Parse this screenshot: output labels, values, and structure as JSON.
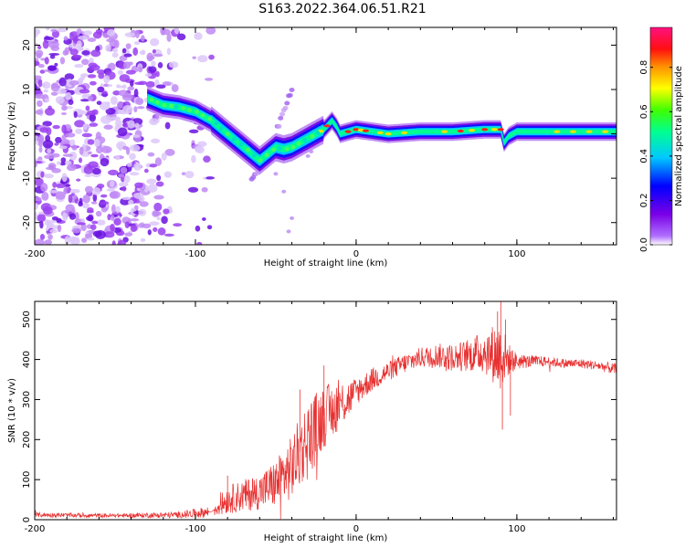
{
  "title": "S163.2022.364.06.51.R21",
  "chart_data": [
    {
      "type": "heatmap",
      "xlabel": "Height of straight line (km)",
      "ylabel": "Frequency (Hz)",
      "xlim": [
        -200,
        162
      ],
      "ylim": [
        -25,
        24
      ],
      "xticks": [
        -200,
        -100,
        0,
        100
      ],
      "yticks": [
        -20,
        -10,
        0,
        10,
        20
      ],
      "colorbar": {
        "label": "Normalized spectral amplitude",
        "range": [
          0,
          0.98
        ],
        "ticks": [
          "0.0",
          "0.2",
          "0.4",
          "0.6",
          "0.8"
        ],
        "colormap": "rainbow (purple-blue-cyan-green-yellow-orange-red-pink)"
      },
      "trace": {
        "x": [
          -130,
          -120,
          -110,
          -100,
          -90,
          -80,
          -70,
          -60,
          -50,
          -45,
          -40,
          -35,
          -30,
          -25,
          -20,
          -15,
          -12,
          -10,
          -5,
          0,
          10,
          20,
          40,
          60,
          80,
          90,
          92,
          95,
          100,
          120,
          140,
          162
        ],
        "freq": [
          8,
          6.5,
          6,
          5,
          3,
          0,
          -3,
          -6,
          -3,
          -3.5,
          -3,
          -2,
          -1,
          0,
          1,
          3,
          1.5,
          0,
          0.5,
          1,
          0.5,
          0,
          0.5,
          0.5,
          1,
          1,
          -2,
          -0.5,
          0.5,
          0.5,
          0.5,
          0.5
        ]
      },
      "secondary_trace": {
        "x": [
          -65,
          -55,
          -50,
          -45,
          -40
        ],
        "freq": [
          -10,
          -5,
          0,
          5,
          10
        ]
      }
    },
    {
      "type": "line",
      "xlabel": "Height of straight line (km)",
      "ylabel": "SNR (10 * v/v)",
      "xlim": [
        -200,
        162
      ],
      "ylim": [
        0,
        545
      ],
      "xticks": [
        -200,
        -100,
        0,
        100
      ],
      "yticks": [
        0,
        100,
        200,
        300,
        400,
        500
      ],
      "color": "#e83030",
      "envelope": {
        "x": [
          -200,
          -150,
          -110,
          -90,
          -80,
          -70,
          -60,
          -50,
          -40,
          -35,
          -30,
          -25,
          -20,
          -15,
          -10,
          -5,
          0,
          10,
          20,
          30,
          40,
          50,
          60,
          70,
          80,
          90,
          95,
          100,
          110,
          120,
          130,
          140,
          150,
          162
        ],
        "y": [
          12,
          10,
          12,
          20,
          50,
          60,
          70,
          90,
          130,
          170,
          200,
          230,
          260,
          270,
          290,
          300,
          320,
          350,
          370,
          390,
          405,
          410,
          405,
          410,
          420,
          410,
          400,
          395,
          395,
          395,
          390,
          390,
          385,
          375
        ],
        "spread": [
          6,
          5,
          8,
          15,
          35,
          40,
          45,
          60,
          80,
          90,
          100,
          90,
          80,
          70,
          60,
          50,
          35,
          30,
          25,
          25,
          25,
          30,
          35,
          40,
          55,
          90,
          40,
          20,
          15,
          12,
          12,
          12,
          12,
          15
        ]
      }
    }
  ]
}
